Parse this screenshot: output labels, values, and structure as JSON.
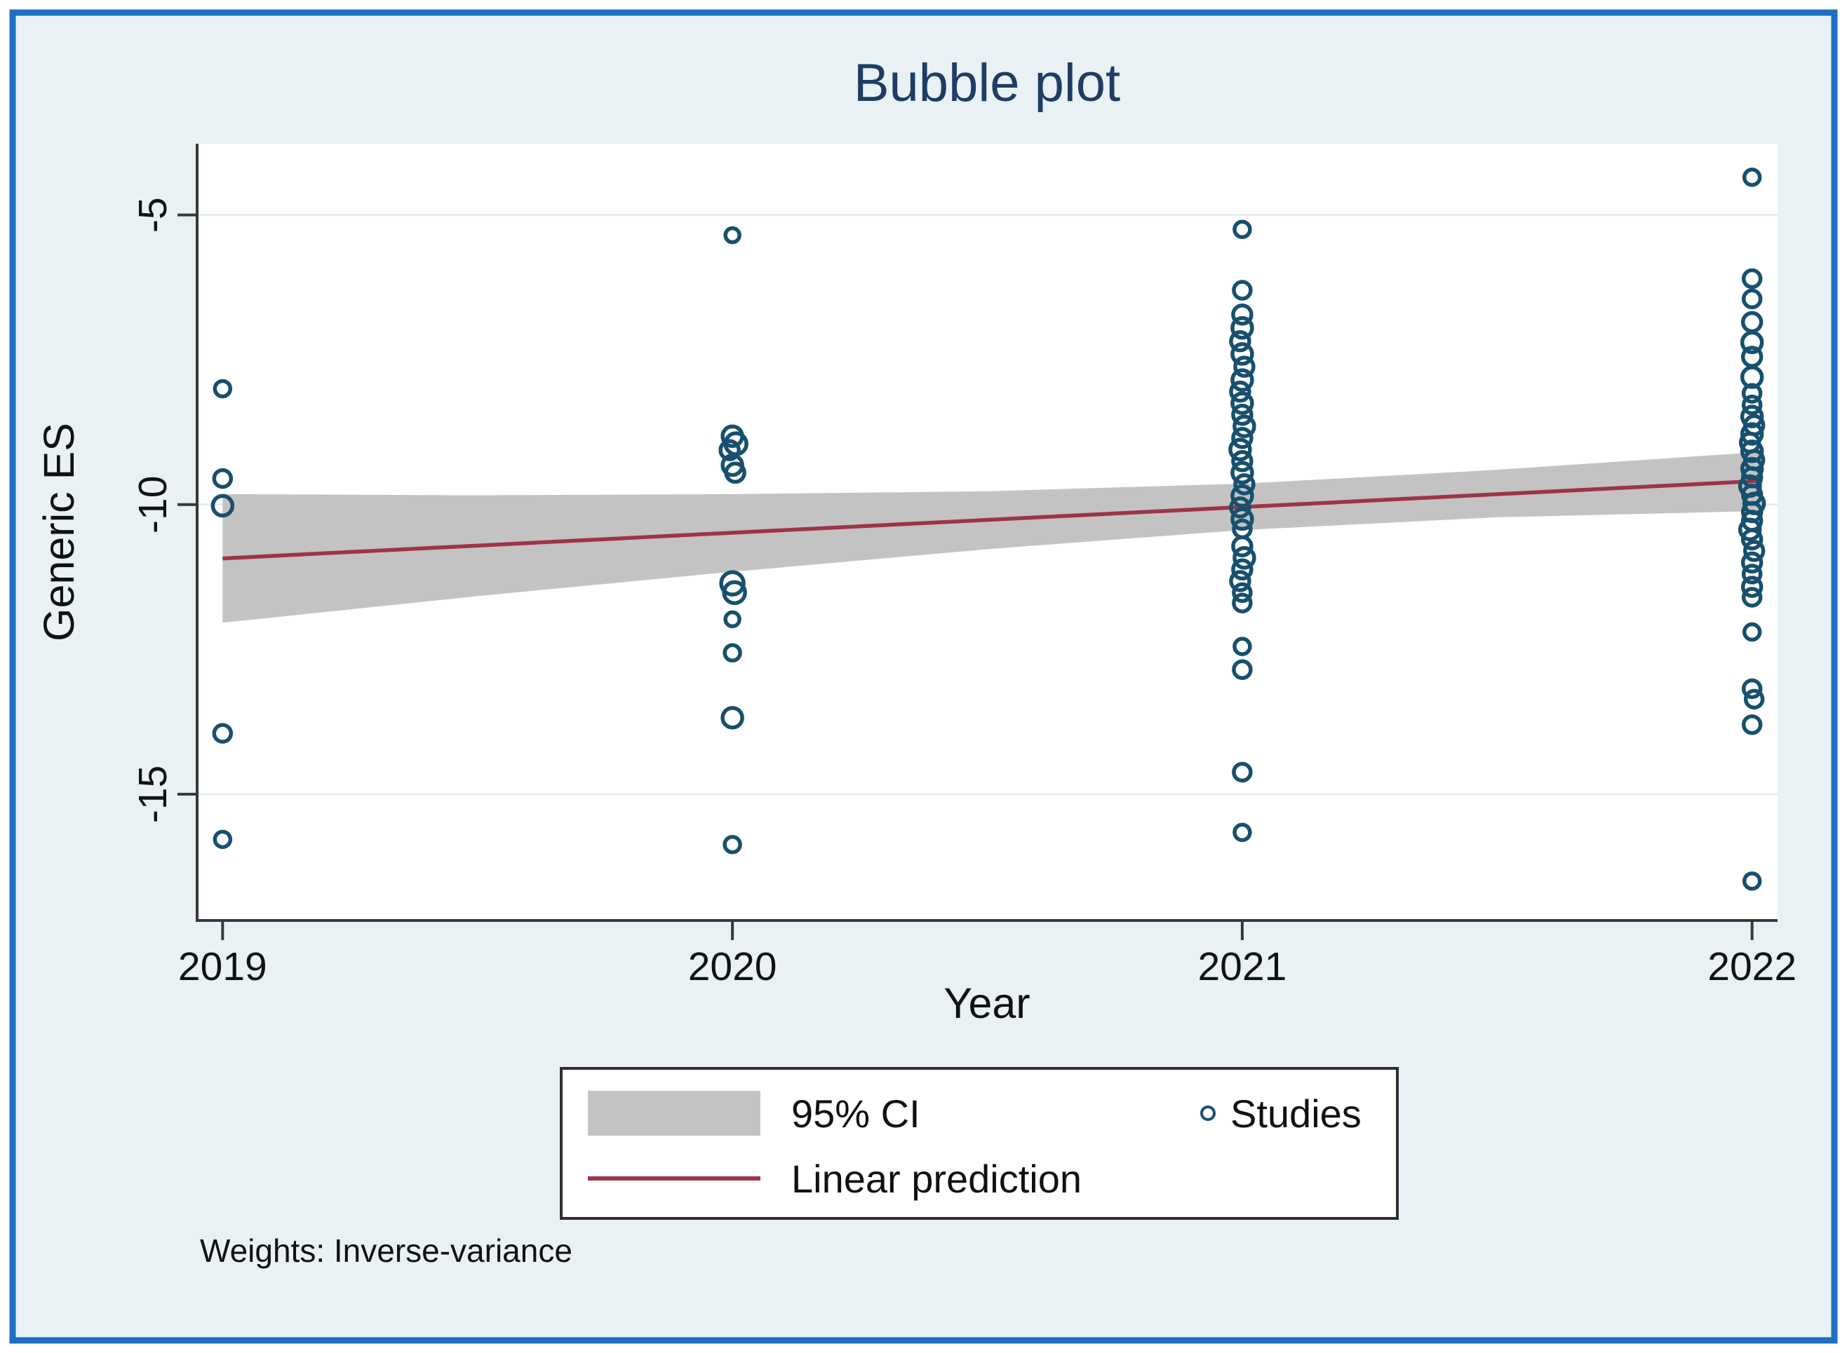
{
  "colors": {
    "frame_border": "#1d6fc0",
    "canvas_background": "#e9f1f5",
    "plot_background": "#ffffff",
    "axis": "#383838",
    "text": "#111111",
    "title": "#1e3c64",
    "marker_stroke": "#17506e",
    "ci_band": "#c3c3c3",
    "prediction_line": "#9e3448",
    "gridline": "#e6edef",
    "legend_border": "#2f2f2f"
  },
  "chart_data": {
    "type": "scatter",
    "title": "Bubble plot",
    "xlabel": "Year",
    "ylabel": "Generic ES",
    "note": "Weights: Inverse-variance",
    "x_ticks": [
      2019,
      2020,
      2021,
      2022
    ],
    "y_ticks": [
      -5,
      -10,
      -15
    ],
    "xlim": [
      2018.95,
      2022.05
    ],
    "ylim": [
      -17.18,
      -3.77
    ],
    "grid": "horizontal-faint",
    "legend_position": "below-plot",
    "legend": [
      {
        "label": "95% CI",
        "type": "band"
      },
      {
        "label": "Studies",
        "type": "marker"
      },
      {
        "label": "Linear prediction",
        "type": "line"
      }
    ],
    "regression_line": {
      "x": [
        2019.0,
        2022.02
      ],
      "y": [
        -10.93,
        -9.59
      ]
    },
    "ci_band": {
      "x": [
        2019.0,
        2019.5,
        2020.0,
        2020.5,
        2021.0,
        2021.5,
        2022.02
      ],
      "top": [
        -9.82,
        -9.84,
        -9.82,
        -9.77,
        -9.64,
        -9.4,
        -9.09
      ],
      "bottom": [
        -12.04,
        -11.58,
        -11.16,
        -10.77,
        -10.44,
        -10.22,
        -10.11
      ]
    },
    "series": [
      {
        "name": "Studies",
        "year": 2019,
        "points": [
          [
            -8.0,
            11
          ],
          [
            -9.55,
            12
          ],
          [
            -10.02,
            14
          ],
          [
            -13.95,
            12
          ],
          [
            -15.78,
            11
          ]
        ]
      },
      {
        "name": "Studies",
        "year": 2020,
        "points": [
          [
            -5.35,
            10
          ],
          [
            -8.82,
            14
          ],
          [
            -8.95,
            15,
            5
          ],
          [
            -9.06,
            13,
            -4
          ],
          [
            -9.32,
            14
          ],
          [
            -9.45,
            13,
            4
          ],
          [
            -11.36,
            16
          ],
          [
            -11.52,
            15,
            3
          ],
          [
            -11.98,
            10
          ],
          [
            -12.56,
            11
          ],
          [
            -13.68,
            14
          ],
          [
            -15.87,
            11
          ]
        ]
      },
      {
        "name": "Studies",
        "year": 2021,
        "points": [
          [
            -5.25,
            11
          ],
          [
            -6.3,
            12
          ],
          [
            -6.72,
            13
          ],
          [
            -6.95,
            14
          ],
          [
            -7.18,
            13,
            -3
          ],
          [
            -7.4,
            14
          ],
          [
            -7.62,
            13,
            3
          ],
          [
            -7.85,
            14
          ],
          [
            -8.05,
            13,
            -3
          ],
          [
            -8.25,
            14
          ],
          [
            -8.45,
            13
          ],
          [
            -8.65,
            14,
            3
          ],
          [
            -8.85,
            13
          ],
          [
            -9.05,
            14,
            -3
          ],
          [
            -9.25,
            13
          ],
          [
            -9.45,
            14
          ],
          [
            -9.65,
            13,
            3
          ],
          [
            -9.85,
            14
          ],
          [
            -10.05,
            13,
            -3
          ],
          [
            -10.25,
            14
          ],
          [
            -10.42,
            12
          ],
          [
            -10.72,
            13
          ],
          [
            -10.92,
            14,
            3
          ],
          [
            -11.12,
            13
          ],
          [
            -11.32,
            13,
            -3
          ],
          [
            -11.52,
            12
          ],
          [
            -11.7,
            12
          ],
          [
            -12.45,
            11
          ],
          [
            -12.85,
            12
          ],
          [
            -14.62,
            12
          ],
          [
            -15.66,
            11
          ]
        ]
      },
      {
        "name": "Studies",
        "year": 2022,
        "points": [
          [
            -4.35,
            11
          ],
          [
            -6.1,
            12
          ],
          [
            -6.45,
            12
          ],
          [
            -6.85,
            13
          ],
          [
            -7.2,
            14
          ],
          [
            -7.45,
            13
          ],
          [
            -7.8,
            14
          ],
          [
            -8.08,
            12
          ],
          [
            -8.28,
            12
          ],
          [
            -8.48,
            14
          ],
          [
            -8.63,
            13,
            3
          ],
          [
            -8.78,
            14
          ],
          [
            -8.93,
            13,
            -3
          ],
          [
            -9.08,
            14
          ],
          [
            -9.23,
            13,
            3
          ],
          [
            -9.38,
            14
          ],
          [
            -9.53,
            13
          ],
          [
            -9.68,
            14,
            -3
          ],
          [
            -9.83,
            13
          ],
          [
            -9.98,
            14,
            3
          ],
          [
            -10.13,
            13
          ],
          [
            -10.28,
            13
          ],
          [
            -10.43,
            14,
            -3
          ],
          [
            -10.6,
            13
          ],
          [
            -10.8,
            13,
            3
          ],
          [
            -11.0,
            13
          ],
          [
            -11.2,
            12
          ],
          [
            -11.42,
            13
          ],
          [
            -11.6,
            12
          ],
          [
            -12.2,
            11
          ],
          [
            -13.18,
            12
          ],
          [
            -13.36,
            12,
            3
          ],
          [
            -13.8,
            12
          ],
          [
            -16.5,
            11
          ]
        ]
      }
    ]
  }
}
